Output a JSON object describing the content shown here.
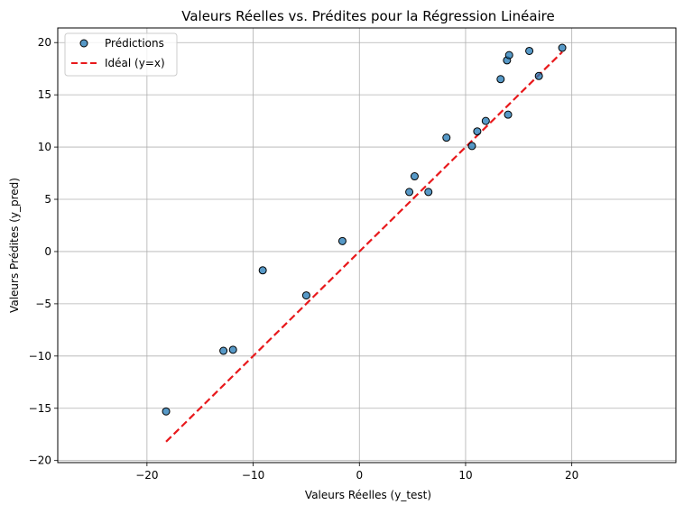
{
  "chart_data": {
    "type": "scatter",
    "title": "Valeurs Réelles vs. Prédites pour la Régression Linéaire",
    "xlabel": "Valeurs Réelles (y_test)",
    "ylabel": "Valeurs Prédites (y_pred)",
    "xlim": [
      -28.4,
      29.8
    ],
    "ylim": [
      -20.2,
      21.4
    ],
    "xticks": [
      -20,
      -10,
      0,
      10,
      20
    ],
    "yticks": [
      -20,
      -15,
      -10,
      -5,
      0,
      5,
      10,
      15,
      20
    ],
    "grid": true,
    "legend_position": "top-left",
    "series": [
      {
        "name": "Prédictions",
        "kind": "scatter",
        "color": "#1f77b4",
        "edge_color": "#000000",
        "points": [
          [
            -18.2,
            -15.3
          ],
          [
            -12.8,
            -9.5
          ],
          [
            -11.9,
            -9.4
          ],
          [
            -9.1,
            -1.8
          ],
          [
            -5.0,
            -4.2
          ],
          [
            -1.6,
            1.0
          ],
          [
            4.7,
            5.7
          ],
          [
            5.2,
            7.2
          ],
          [
            6.5,
            5.7
          ],
          [
            8.2,
            10.9
          ],
          [
            10.6,
            10.1
          ],
          [
            11.1,
            11.5
          ],
          [
            11.9,
            12.5
          ],
          [
            13.3,
            16.5
          ],
          [
            13.9,
            18.3
          ],
          [
            14.1,
            18.8
          ],
          [
            14.0,
            13.1
          ],
          [
            16.0,
            19.2
          ],
          [
            16.9,
            16.8
          ],
          [
            19.1,
            19.5
          ]
        ]
      },
      {
        "name": "Idéal (y=x)",
        "kind": "line",
        "color": "#e8191c",
        "style": "dashed",
        "points": [
          [
            -18.2,
            -18.2
          ],
          [
            19.1,
            19.1
          ]
        ]
      }
    ]
  }
}
